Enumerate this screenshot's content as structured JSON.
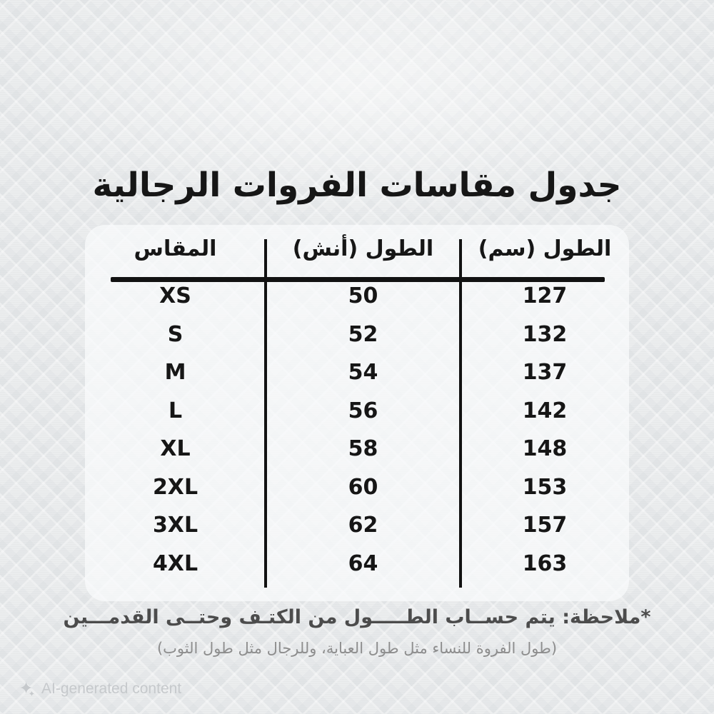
{
  "title": "جدول مقاسات الفروات الرجالية",
  "table": {
    "headers": {
      "size": "المقاس",
      "inch": "الطول (أنش)",
      "cm": "الطول (سم)"
    },
    "rows": [
      {
        "size": "XS",
        "inch": "50",
        "cm": "127"
      },
      {
        "size": "S",
        "inch": "52",
        "cm": "132"
      },
      {
        "size": "M",
        "inch": "54",
        "cm": "137"
      },
      {
        "size": "L",
        "inch": "56",
        "cm": "142"
      },
      {
        "size": "XL",
        "inch": "58",
        "cm": "148"
      },
      {
        "size": "2XL",
        "inch": "60",
        "cm": "153"
      },
      {
        "size": "3XL",
        "inch": "62",
        "cm": "157"
      },
      {
        "size": "4XL",
        "inch": "64",
        "cm": "163"
      }
    ]
  },
  "notes": {
    "line1": "*ملاحظة: يتم حســاب الطـــــول من الكتـف وحتــى القدمـــين",
    "line2": "(طول الفروة للنساء مثل طول العباية، وللرجال مثل طول الثوب)"
  },
  "watermark": {
    "icon": "sparkle-icon",
    "label": "AI-generated content"
  },
  "colors": {
    "bg": "#ebedee",
    "panel": "#f6f8f9",
    "text": "#161616",
    "line": "#121212",
    "note_primary": "#4c4c4c",
    "note_secondary": "#8d8d8d",
    "watermark": "#c6c9cc"
  }
}
